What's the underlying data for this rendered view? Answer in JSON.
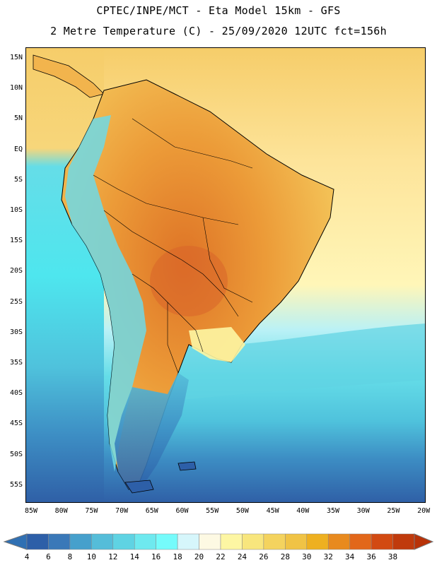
{
  "title": {
    "line1": "CPTEC/INPE/MCT -  Eta Model 15km - GFS",
    "line2": "2 Metre Temperature (C) - 25/09/2020 12UTC fct=156h"
  },
  "axes": {
    "lat_labels": [
      "15N",
      "10N",
      "5N",
      "EQ",
      "5S",
      "10S",
      "15S",
      "20S",
      "25S",
      "30S",
      "35S",
      "40S",
      "45S",
      "50S",
      "55S"
    ],
    "lon_labels": [
      "85W",
      "80W",
      "75W",
      "70W",
      "65W",
      "60W",
      "55W",
      "50W",
      "45W",
      "40W",
      "35W",
      "30W",
      "25W",
      "20W"
    ]
  },
  "colorbar": {
    "labels": [
      "4",
      "6",
      "8",
      "10",
      "12",
      "14",
      "16",
      "18",
      "20",
      "22",
      "24",
      "26",
      "28",
      "30",
      "32",
      "34",
      "36",
      "38"
    ],
    "colors": [
      "#2d5fa8",
      "#3a78b8",
      "#46a0cc",
      "#55bdd9",
      "#5fd3e3",
      "#6ee9ef",
      "#75fbfb",
      "#d6f6fb",
      "#fdf9e3",
      "#fdf6a3",
      "#f8e67d",
      "#f4d35e",
      "#f0c345",
      "#eeb020",
      "#e88a1e",
      "#e2671a",
      "#d24a12",
      "#c03a0c"
    ],
    "low_end": "#3070b3",
    "high_end": "#b83208"
  },
  "map": {
    "region": "South America",
    "ocean_gradient": [
      "#fde49a",
      "#fff6b8",
      "#b9f1f6",
      "#65dde8",
      "#4fc2dc",
      "#3d8ec4",
      "#2f5fa6"
    ],
    "land_hot": "#e98d33",
    "land_warm": "#f2b44d",
    "land_cool": "#5fd3e3",
    "coast_color": "#000000"
  }
}
